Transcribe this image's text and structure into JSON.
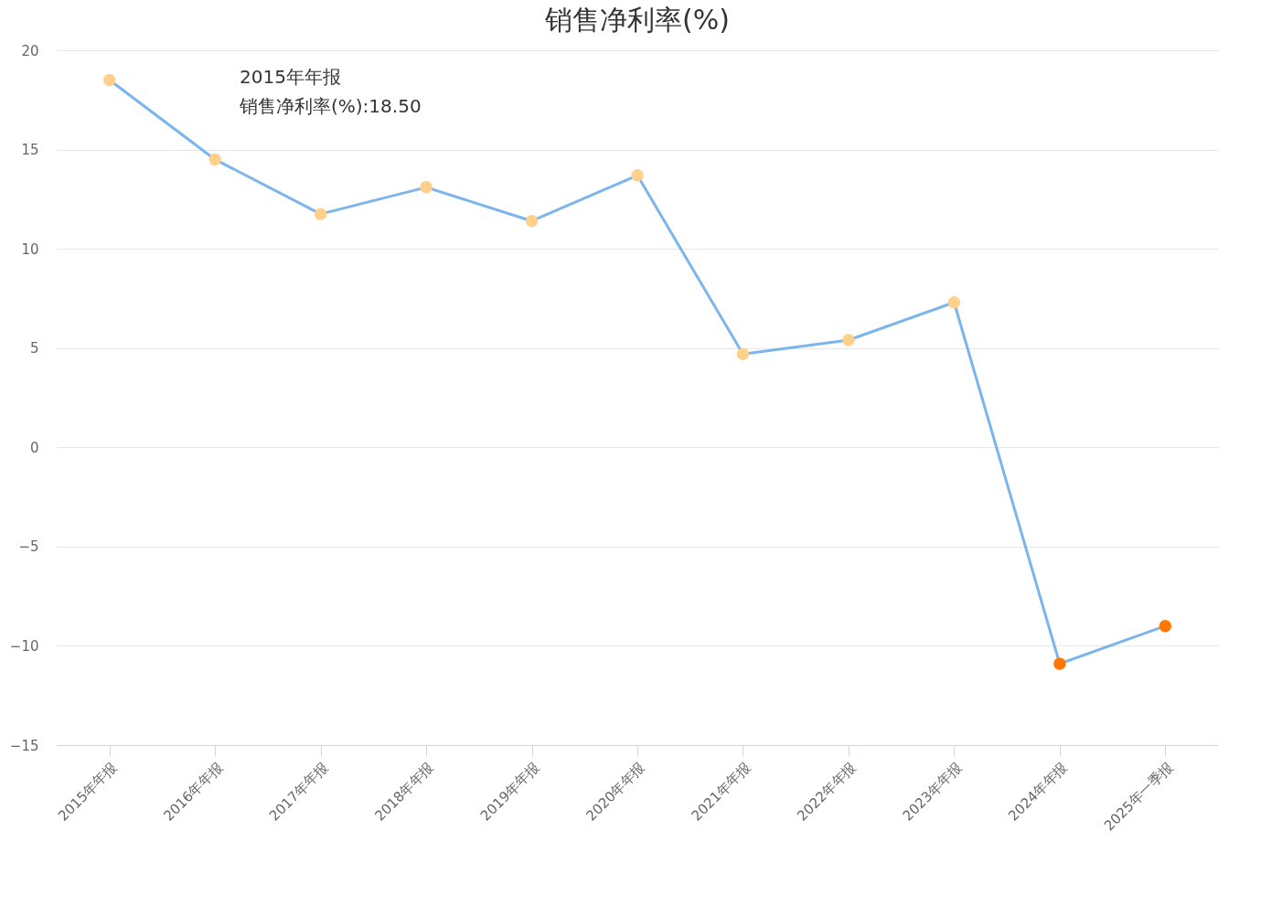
{
  "chart_data": {
    "type": "line",
    "title": "销售净利率(%)",
    "categories": [
      "2015年年报",
      "2016年年报",
      "2017年年报",
      "2018年年报",
      "2019年年报",
      "2020年年报",
      "2021年年报",
      "2022年年报",
      "2023年年报",
      "2024年年报",
      "2025年一季报"
    ],
    "series": [
      {
        "color": "#7cb5ec",
        "values": [
          18.5,
          14.5,
          11.75,
          13.1,
          11.4,
          13.7,
          4.7,
          5.4,
          7.3,
          -10.9,
          -9.0
        ],
        "colors": [
          "#ffd08a",
          "#ffd08a",
          "#ffd08a",
          "#ffd08a",
          "#ffd08a",
          "#ffd08a",
          "#ffd08a",
          "#ffd08a",
          "#ffd08a",
          "#ff7700",
          "#ff7700"
        ]
      }
    ],
    "ylim": [
      -15,
      20
    ],
    "yticks": [
      -15,
      -10,
      -5,
      0,
      5,
      10,
      15,
      20
    ],
    "grid": "y",
    "marker": "circle",
    "annotations": [
      "2015年年报",
      "销售净利率(%):18.50"
    ]
  }
}
